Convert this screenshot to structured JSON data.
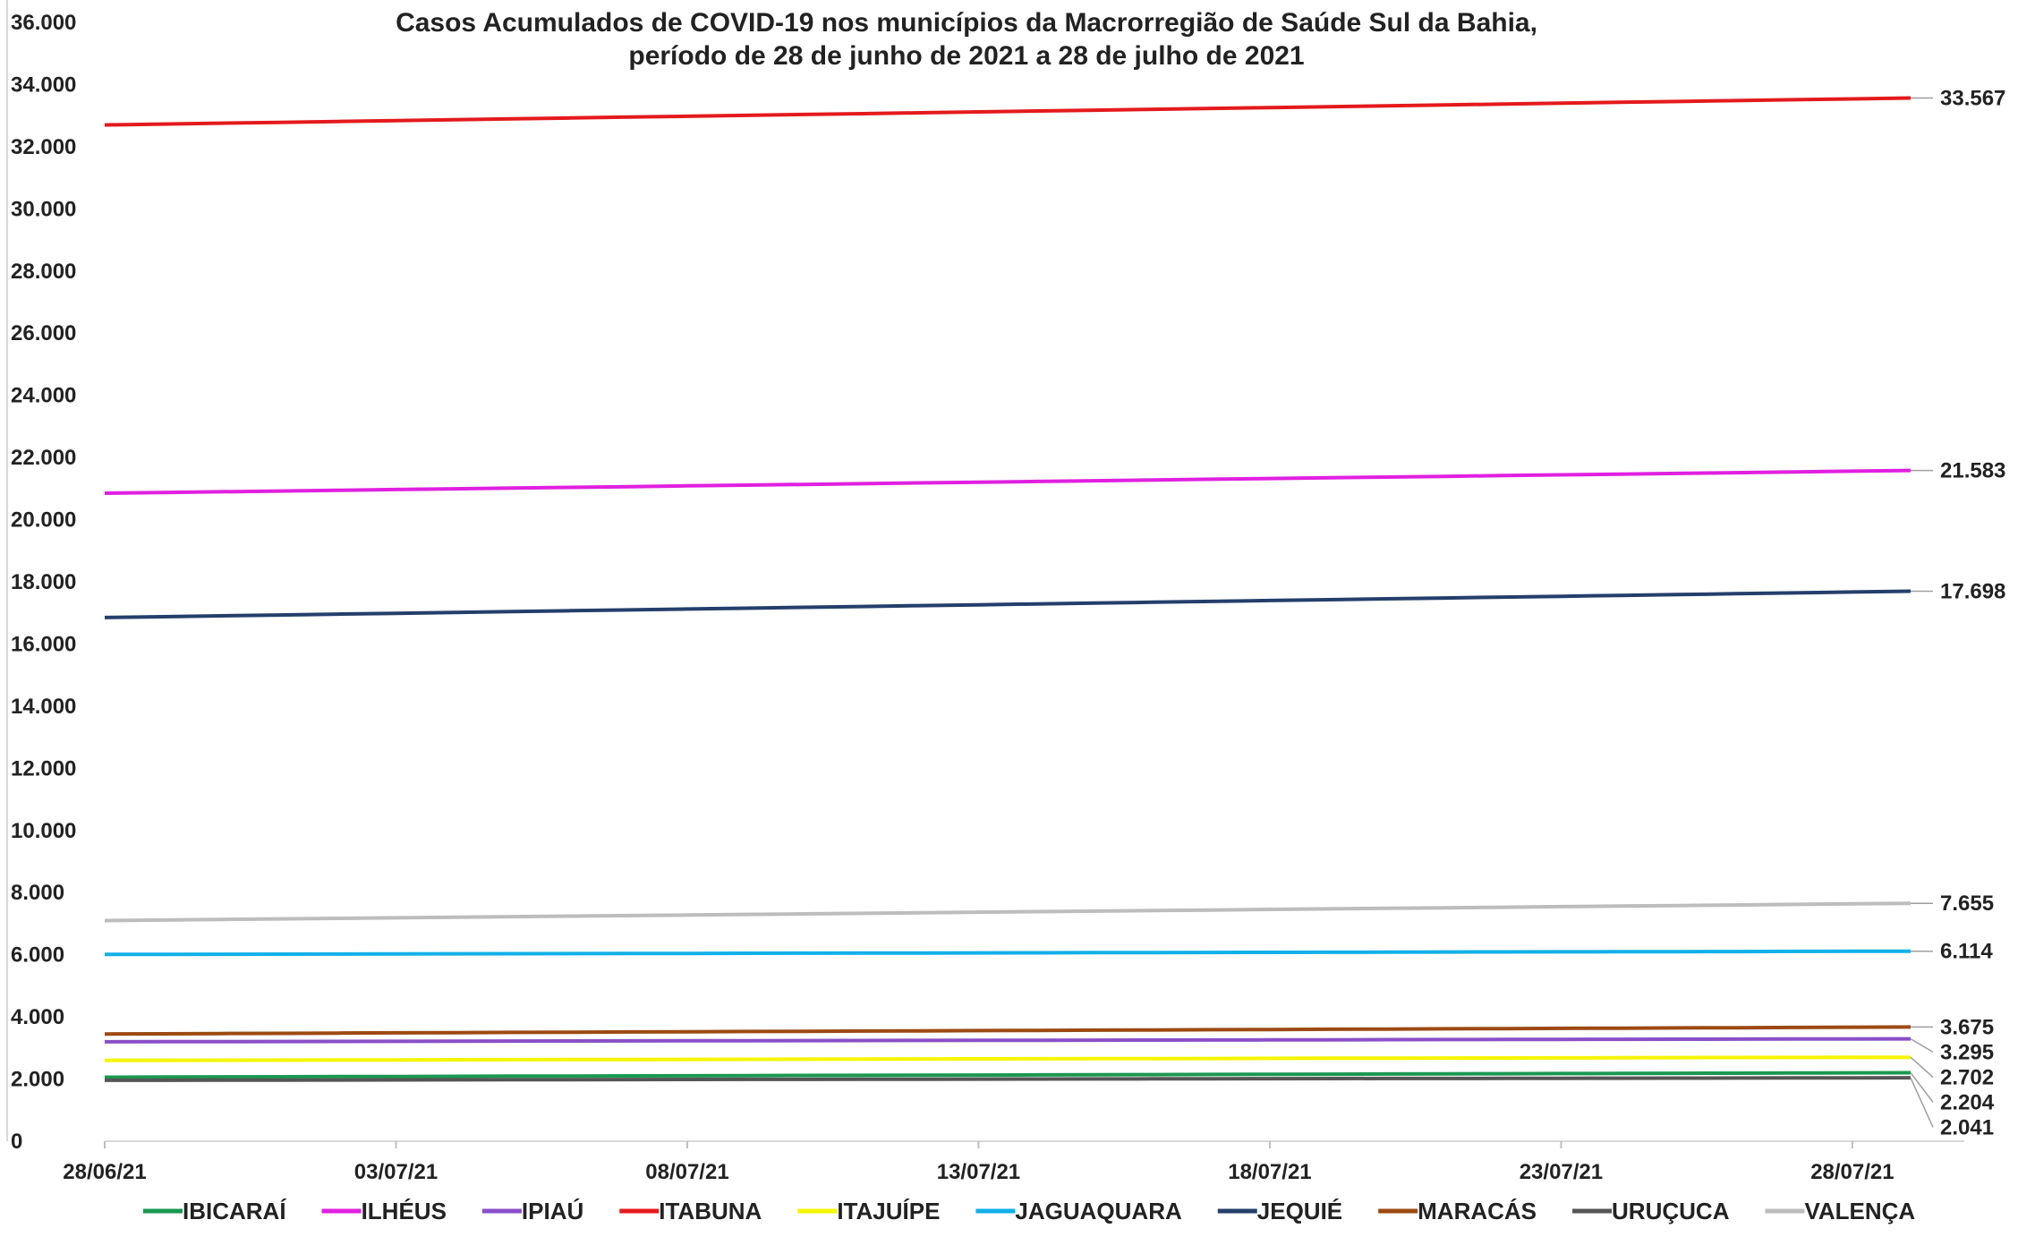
{
  "chart_data": {
    "type": "line",
    "title": "Casos Acumulados de COVID-19 nos municípios da Macrorregião de Saúde Sul da Bahia,",
    "subtitle": "período de 28 de junho de 2021 a 28 de julho de 2021",
    "xlabel": "",
    "ylabel": "",
    "ylim": [
      0,
      36000
    ],
    "y_ticks": [
      "0",
      "2.000",
      "4.000",
      "6.000",
      "8.000",
      "10.000",
      "12.000",
      "14.000",
      "16.000",
      "18.000",
      "20.000",
      "22.000",
      "24.000",
      "26.000",
      "28.000",
      "30.000",
      "32.000",
      "34.000",
      "36.000"
    ],
    "x_tick_labels": [
      "28/06/21",
      "03/07/21",
      "08/07/21",
      "13/07/21",
      "18/07/21",
      "23/07/21",
      "28/07/21"
    ],
    "x_tick_days": [
      0,
      5,
      10,
      15,
      20,
      25,
      30
    ],
    "grid": false,
    "legend_position": "bottom",
    "series": [
      {
        "name": "IBICARAÍ",
        "color": "#1a9850",
        "start": 2060,
        "end": 2204,
        "end_label": "2.204"
      },
      {
        "name": "ILHÉUS",
        "color": "#e020e0",
        "start": 20850,
        "end": 21583,
        "end_label": "21.583"
      },
      {
        "name": "IPIAÚ",
        "color": "#8a4fc7",
        "start": 3200,
        "end": 3295,
        "end_label": "3.295"
      },
      {
        "name": "ITABUNA",
        "color": "#e41a1c",
        "start": 32700,
        "end": 33567,
        "end_label": "33.567"
      },
      {
        "name": "ITAJUÍPE",
        "color": "#f5f500",
        "start": 2600,
        "end": 2702,
        "end_label": "2.702"
      },
      {
        "name": "JAGUAQUARA",
        "color": "#12b0e8",
        "start": 6010,
        "end": 6114,
        "end_label": "6.114"
      },
      {
        "name": "JEQUIÉ",
        "color": "#243f6b",
        "start": 16850,
        "end": 17698,
        "end_label": "17.698"
      },
      {
        "name": "MARACÁS",
        "color": "#9c4a12",
        "start": 3450,
        "end": 3675,
        "end_label": "3.675"
      },
      {
        "name": "URUÇUCA",
        "color": "#555555",
        "start": 1960,
        "end": 2041,
        "end_label": "2.041"
      },
      {
        "name": "VALENÇA",
        "color": "#bdbdbd",
        "start": 7100,
        "end": 7655,
        "end_label": "7.655"
      }
    ]
  }
}
